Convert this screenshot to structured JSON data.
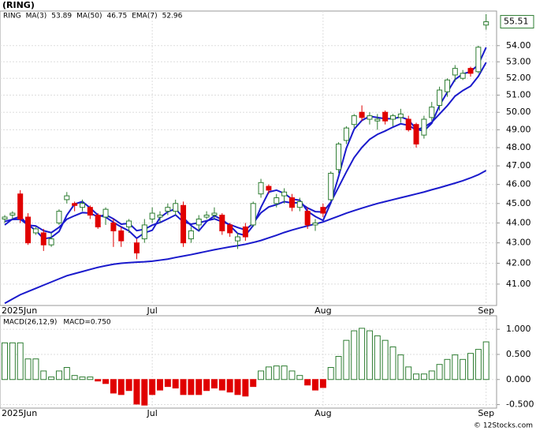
{
  "chart_data": [
    {
      "type": "candlestick",
      "title": "(RING)",
      "symbol": "RING",
      "categories": [
        "2025Jun",
        null,
        null,
        null,
        null,
        null,
        null,
        null,
        null,
        null,
        null,
        null,
        null,
        null,
        null,
        null,
        null,
        null,
        null,
        "Jul",
        null,
        null,
        null,
        null,
        null,
        null,
        null,
        null,
        null,
        null,
        null,
        null,
        null,
        null,
        null,
        null,
        null,
        null,
        null,
        null,
        null,
        "Aug",
        null,
        null,
        null,
        null,
        null,
        null,
        null,
        null,
        null,
        null,
        null,
        null,
        null,
        null,
        null,
        null,
        null,
        null,
        null,
        null,
        "Sep"
      ],
      "open": [
        44.2,
        44.4,
        45.5,
        44.3,
        43.5,
        43.5,
        42.9,
        44.0,
        45.2,
        45.0,
        44.8,
        44.8,
        44.4,
        44.3,
        44.0,
        43.6,
        43.8,
        43.0,
        43.2,
        44.2,
        44.3,
        44.6,
        44.6,
        44.9,
        43.2,
        43.9,
        44.3,
        44.4,
        44.4,
        43.9,
        43.1,
        43.8,
        43.9,
        45.5,
        45.9,
        45.0,
        45.4,
        45.3,
        44.8,
        44.6,
        43.9,
        44.8,
        45.2,
        46.8,
        48.4,
        49.3,
        50.0,
        49.6,
        49.5,
        50.0,
        49.6,
        49.7,
        49.6,
        49.3,
        48.7,
        49.7,
        50.4,
        51.2,
        52.2,
        52.0,
        52.6,
        52.4,
        55.3
      ],
      "high": [
        44.4,
        44.6,
        45.7,
        44.5,
        43.8,
        43.7,
        43.5,
        44.7,
        45.6,
        45.1,
        45.2,
        44.9,
        44.5,
        44.8,
        44.2,
        43.8,
        44.2,
        43.2,
        44.2,
        44.8,
        44.6,
        45.0,
        45.2,
        45.1,
        43.8,
        44.4,
        44.6,
        44.8,
        44.5,
        44.0,
        43.5,
        44.0,
        45.1,
        46.3,
        46.0,
        45.5,
        45.8,
        45.5,
        45.3,
        44.8,
        44.2,
        45.0,
        46.7,
        48.3,
        49.2,
        49.9,
        50.4,
        50.0,
        49.9,
        50.1,
        49.9,
        50.2,
        49.8,
        49.4,
        49.8,
        50.6,
        51.5,
        52.0,
        52.8,
        52.5,
        52.7,
        54.0,
        56.0
      ],
      "low": [
        44.0,
        44.2,
        44.0,
        42.9,
        43.4,
        42.6,
        42.8,
        43.9,
        45.0,
        44.6,
        44.6,
        44.2,
        43.7,
        43.9,
        42.8,
        42.8,
        43.5,
        42.2,
        43.0,
        44.0,
        44.0,
        44.4,
        44.4,
        42.8,
        43.0,
        43.6,
        44.2,
        44.2,
        43.4,
        43.3,
        42.7,
        43.1,
        43.8,
        45.3,
        45.5,
        44.8,
        45.0,
        44.6,
        44.6,
        43.7,
        43.6,
        44.3,
        45.1,
        46.6,
        48.2,
        49.1,
        49.5,
        49.3,
        49.0,
        49.3,
        49.2,
        49.4,
        48.9,
        48.0,
        48.5,
        49.5,
        50.1,
        50.9,
        51.8,
        51.9,
        52.1,
        52.3,
        55.0
      ],
      "close": [
        44.3,
        44.5,
        44.2,
        43.0,
        43.7,
        42.9,
        43.2,
        44.6,
        45.4,
        44.9,
        45.0,
        44.4,
        43.8,
        44.7,
        43.6,
        43.1,
        44.1,
        42.5,
        43.9,
        44.5,
        44.4,
        44.8,
        45.0,
        43.0,
        43.6,
        44.2,
        44.4,
        44.5,
        43.6,
        43.5,
        43.3,
        43.3,
        45.0,
        46.1,
        45.7,
        45.3,
        45.6,
        44.8,
        45.1,
        43.9,
        44.0,
        44.5,
        46.6,
        48.2,
        49.1,
        49.8,
        49.7,
        49.8,
        49.6,
        49.5,
        49.8,
        49.9,
        49.0,
        48.2,
        49.6,
        50.3,
        51.3,
        51.9,
        52.6,
        52.3,
        52.3,
        53.9,
        55.51
      ],
      "last_price": 55.51,
      "up_color": "#2e7d32",
      "down_color": "#e00000",
      "series": [
        {
          "name": "MA(3)",
          "color": "#1a1acc",
          "last": 53.89,
          "values": [
            43.9,
            44.2,
            44.33,
            43.9,
            43.63,
            43.2,
            43.27,
            43.57,
            44.4,
            44.97,
            45.1,
            44.77,
            44.4,
            44.3,
            44.03,
            43.8,
            43.6,
            43.23,
            43.5,
            43.63,
            44.27,
            44.57,
            44.73,
            44.27,
            43.87,
            43.6,
            44.07,
            44.37,
            44.17,
            43.87,
            43.47,
            43.37,
            43.87,
            44.8,
            45.6,
            45.7,
            45.53,
            45.23,
            45.17,
            44.6,
            44.33,
            44.13,
            45.03,
            46.43,
            47.97,
            49.03,
            49.53,
            49.77,
            49.7,
            49.63,
            49.63,
            49.73,
            49.57,
            49.03,
            48.93,
            49.37,
            50.4,
            51.17,
            51.93,
            52.27,
            52.4,
            52.83,
            53.89
          ]
        },
        {
          "name": "MA(50)",
          "color": "#1a1acc",
          "last": 46.75,
          "values": [
            40.1,
            40.3,
            40.5,
            40.65,
            40.8,
            40.95,
            41.1,
            41.25,
            41.4,
            41.5,
            41.6,
            41.7,
            41.8,
            41.88,
            41.95,
            42.0,
            42.03,
            42.05,
            42.07,
            42.1,
            42.15,
            42.2,
            42.28,
            42.35,
            42.42,
            42.5,
            42.58,
            42.66,
            42.73,
            42.8,
            42.86,
            42.93,
            43.02,
            43.12,
            43.25,
            43.38,
            43.52,
            43.64,
            43.75,
            43.85,
            43.95,
            44.05,
            44.2,
            44.35,
            44.5,
            44.63,
            44.76,
            44.88,
            45.0,
            45.1,
            45.2,
            45.3,
            45.4,
            45.5,
            45.6,
            45.72,
            45.83,
            45.95,
            46.07,
            46.2,
            46.35,
            46.52,
            46.75
          ]
        },
        {
          "name": "EMA(7)",
          "color": "#1a1acc",
          "last": 52.96,
          "values": [
            44.08,
            44.18,
            44.19,
            43.89,
            43.85,
            43.61,
            43.51,
            43.78,
            44.19,
            44.37,
            44.53,
            44.5,
            44.32,
            44.42,
            44.21,
            43.94,
            43.98,
            43.61,
            43.68,
            43.89,
            44.02,
            44.21,
            44.41,
            44.06,
            43.94,
            44.01,
            44.11,
            44.21,
            44.06,
            43.92,
            43.77,
            43.65,
            43.99,
            44.52,
            44.82,
            44.94,
            45.1,
            45.03,
            45.05,
            44.77,
            44.58,
            44.56,
            45.07,
            45.86,
            46.67,
            47.45,
            48.01,
            48.46,
            48.74,
            48.93,
            49.15,
            49.34,
            49.25,
            48.99,
            49.14,
            49.43,
            49.9,
            50.38,
            50.94,
            51.27,
            51.53,
            52.12,
            52.96
          ]
        }
      ],
      "log_scale": true,
      "grid": true,
      "ylim": [
        40.0,
        56.2
      ],
      "yticks": [
        {
          "value": 41,
          "label": "41.00"
        },
        {
          "value": 42,
          "label": "42.00"
        },
        {
          "value": 43,
          "label": "43.00"
        },
        {
          "value": 44,
          "label": "44.00"
        },
        {
          "value": 45,
          "label": "45.00"
        },
        {
          "value": 46,
          "label": "46.00"
        },
        {
          "value": 47,
          "label": "47.00"
        },
        {
          "value": 48,
          "label": "48.00"
        },
        {
          "value": 49,
          "label": "49.00"
        },
        {
          "value": 50,
          "label": "50.00"
        },
        {
          "value": 51,
          "label": "51.00"
        },
        {
          "value": 52,
          "label": "52.00"
        },
        {
          "value": 53,
          "label": "53.00"
        },
        {
          "value": 54,
          "label": "54.00"
        }
      ]
    },
    {
      "type": "bar",
      "title": "MACD(26,12,9)",
      "label": "MACD=0.750",
      "categories": [
        "2025Jun",
        null,
        null,
        null,
        null,
        null,
        null,
        null,
        null,
        null,
        null,
        null,
        null,
        null,
        null,
        null,
        null,
        null,
        null,
        "Jul",
        null,
        null,
        null,
        null,
        null,
        null,
        null,
        null,
        null,
        null,
        null,
        null,
        null,
        null,
        null,
        null,
        null,
        null,
        null,
        null,
        null,
        "Aug",
        null,
        null,
        null,
        null,
        null,
        null,
        null,
        null,
        null,
        null,
        null,
        null,
        null,
        null,
        null,
        null,
        null,
        null,
        null,
        null,
        "Sep"
      ],
      "values": [
        0.73,
        0.73,
        0.73,
        0.41,
        0.41,
        0.17,
        0.05,
        0.17,
        0.24,
        0.08,
        0.05,
        0.05,
        -0.03,
        -0.08,
        -0.27,
        -0.3,
        -0.22,
        -0.49,
        -0.51,
        -0.3,
        -0.21,
        -0.14,
        -0.17,
        -0.3,
        -0.3,
        -0.3,
        -0.22,
        -0.17,
        -0.21,
        -0.25,
        -0.3,
        -0.33,
        -0.14,
        0.17,
        0.25,
        0.27,
        0.27,
        0.17,
        0.08,
        -0.11,
        -0.21,
        -0.16,
        0.24,
        0.46,
        0.78,
        0.97,
        1.02,
        0.97,
        0.87,
        0.78,
        0.65,
        0.49,
        0.25,
        0.11,
        0.11,
        0.17,
        0.3,
        0.4,
        0.49,
        0.4,
        0.52,
        0.6,
        0.75
      ],
      "up_color": "#2e7d32",
      "down_color": "#e00000",
      "ylim": [
        -0.57,
        1.27
      ],
      "yticks": [
        {
          "value": -0.5,
          "label": "-0.500"
        },
        {
          "value": 0,
          "label": "0.000"
        },
        {
          "value": 0.5,
          "label": "0.500"
        },
        {
          "value": 1,
          "label": "1.000"
        }
      ]
    }
  ],
  "footer": "© 12Stocks.com"
}
